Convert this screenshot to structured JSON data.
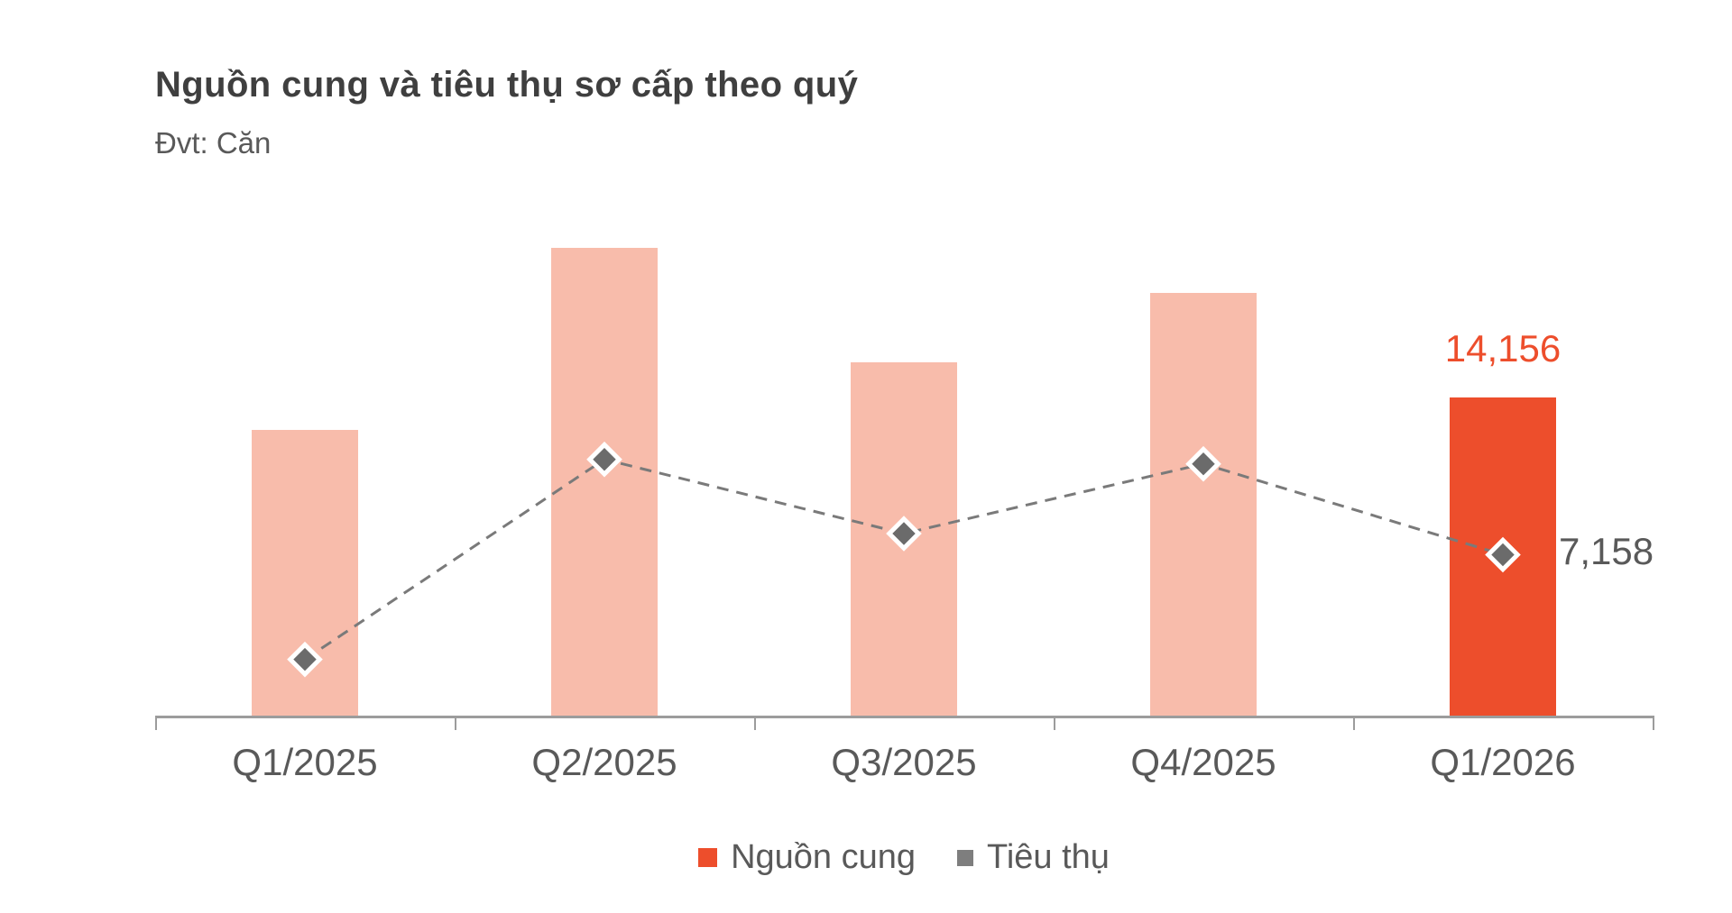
{
  "page": {
    "background_color": "#FFFFFF"
  },
  "chart": {
    "title": "Nguồn cung và tiêu thụ sơ cấp theo quý",
    "subtitle": "Đvt: Căn",
    "legend": [
      {
        "label": "Nguồn cung",
        "marker": "square",
        "color": "#ED4E2C"
      },
      {
        "label": "Tiêu thụ",
        "marker": "square",
        "color": "#7E7E7E"
      }
    ]
  },
  "chart_data": {
    "type": "combo-bar-line",
    "title": "Nguồn cung và tiêu thụ sơ cấp theo quý",
    "subtitle_unit": "Đvt: Căn",
    "categories": [
      "Q1/2025",
      "Q2/2025",
      "Q3/2025",
      "Q4/2025",
      "Q1/2026"
    ],
    "series": [
      {
        "name": "Nguồn cung",
        "type": "bar",
        "values": [
          12700,
          20800,
          15700,
          18800,
          14156
        ],
        "bar_colors": [
          "#F8BCAB",
          "#F8BCAB",
          "#F8BCAB",
          "#F8BCAB",
          "#ED4E2C"
        ]
      },
      {
        "name": "Tiêu thụ",
        "type": "line",
        "style": "dashed",
        "marker": "diamond",
        "line_color": "#7A7A7A",
        "marker_fill": "#6B6B6B",
        "marker_border": "#FFFFFF",
        "values": [
          2500,
          11400,
          8100,
          11200,
          7158
        ]
      }
    ],
    "data_labels": [
      {
        "series": "Nguồn cung",
        "category": "Q1/2026",
        "text": "14,156",
        "color": "#ED4E2C"
      },
      {
        "series": "Tiêu thụ",
        "category": "Q1/2026",
        "text": "7,158",
        "color": "#595959"
      }
    ],
    "ylim": [
      0,
      22000
    ],
    "grid": false,
    "y_axis_visible": false,
    "x_axis_color": "#9C9C9C",
    "x_tick_label_color": "#595959",
    "legend_position": "bottom-center"
  }
}
